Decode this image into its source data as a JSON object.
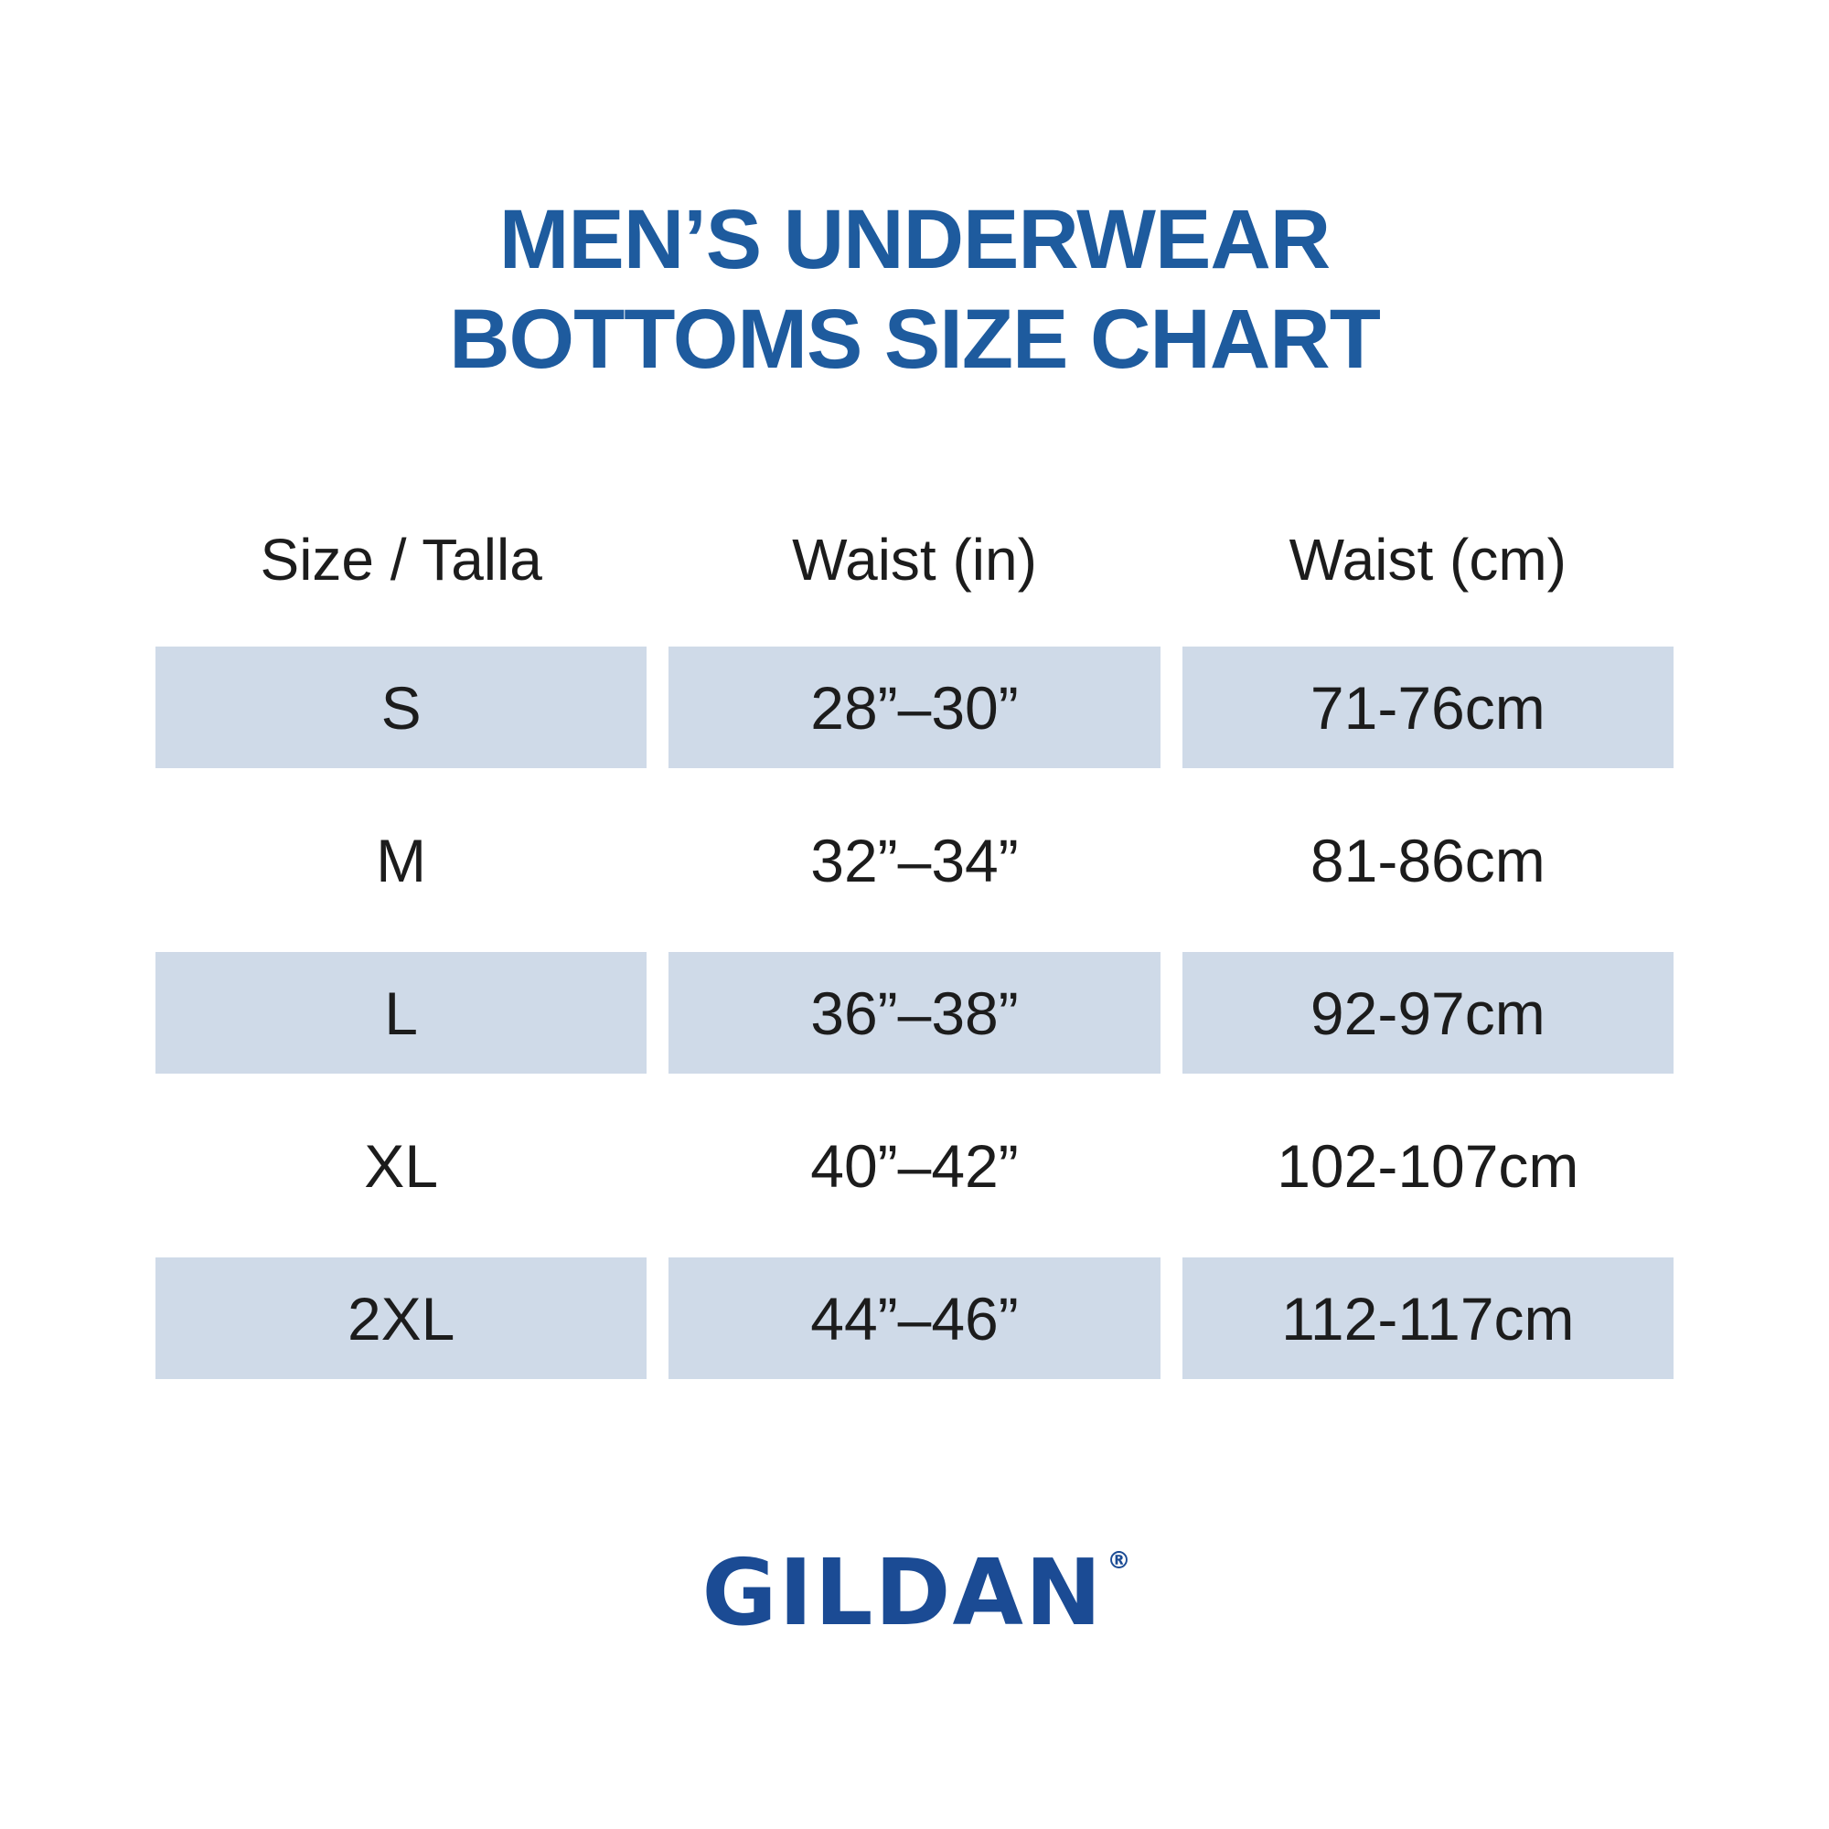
{
  "title": {
    "line1": "MEN’S UNDERWEAR",
    "line2": "BOTTOMS SIZE CHART",
    "color": "#1e5b9e"
  },
  "chart_data": {
    "type": "table",
    "title": "MEN’S UNDERWEAR BOTTOMS SIZE CHART",
    "columns": [
      "Size / Talla",
      "Waist (in)",
      "Waist (cm)"
    ],
    "rows": [
      [
        "S",
        "28”–30”",
        "71-76cm"
      ],
      [
        "M",
        "32”–34”",
        "81-86cm"
      ],
      [
        "L",
        "36”–38”",
        "92-97cm"
      ],
      [
        "XL",
        "40”–42”",
        "102-107cm"
      ],
      [
        "2XL",
        "44”–46”",
        "112-117cm"
      ]
    ],
    "shaded_row_indices": [
      0,
      2,
      4
    ],
    "row_shade_color": "#cfdae8",
    "text_color": "#1c1c1c"
  },
  "brand": {
    "name": "GILDAN",
    "registered_mark": "®",
    "color": "#1b4b94"
  }
}
